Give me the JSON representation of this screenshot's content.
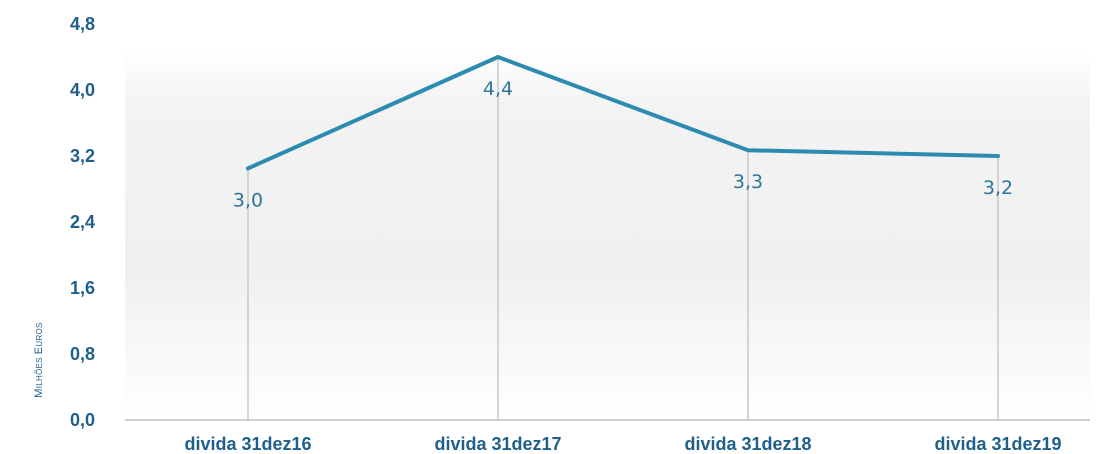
{
  "chart_data": {
    "type": "line",
    "categories": [
      "divida 31dez16",
      "divida 31dez17",
      "divida 31dez18",
      "divida 31dez19"
    ],
    "series": [
      {
        "values": [
          3.05,
          4.4,
          3.27,
          3.2
        ],
        "data_labels": [
          "3,0",
          "4,4",
          "3,3",
          "3,2"
        ],
        "color": "#2e8bb0"
      }
    ],
    "ylabel": "Milhões euros",
    "ylim": [
      0,
      4.8
    ],
    "y_ticks": [
      "0,0",
      "0,8",
      "1,6",
      "2,4",
      "3,2",
      "4,0",
      "4,8"
    ],
    "y_tick_values": [
      0,
      0.8,
      1.6,
      2.4,
      3.2,
      4.0,
      4.8
    ],
    "grid": false,
    "drop_lines": true
  },
  "colors": {
    "line": "#2e8bb0",
    "text": "#1f5f8b",
    "drop_line": "#c8c8c8",
    "axis": "#bfbfbf"
  }
}
